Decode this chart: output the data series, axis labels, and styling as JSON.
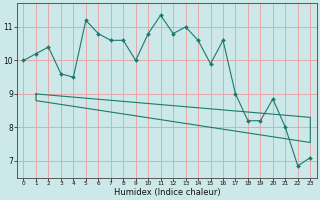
{
  "xlabel": "Humidex (Indice chaleur)",
  "background_color": "#cde8e8",
  "line_color": "#1a7a6e",
  "grid_color_v": "#e8a0a0",
  "grid_color_h": "#e8a0a0",
  "xlim": [
    -0.5,
    23.5
  ],
  "ylim": [
    6.5,
    11.7
  ],
  "yticks": [
    7,
    8,
    9,
    10,
    11
  ],
  "xticks": [
    0,
    1,
    2,
    3,
    4,
    5,
    6,
    7,
    8,
    9,
    10,
    11,
    12,
    13,
    14,
    15,
    16,
    17,
    18,
    19,
    20,
    21,
    22,
    23
  ],
  "main_x": [
    0,
    1,
    2,
    3,
    4,
    5,
    6,
    7,
    8,
    9,
    10,
    11,
    12,
    13,
    14,
    15,
    16,
    17,
    18,
    19,
    20,
    21,
    22,
    23
  ],
  "main_y": [
    10.0,
    10.2,
    10.4,
    9.6,
    9.5,
    11.2,
    10.8,
    10.6,
    10.6,
    10.0,
    10.8,
    11.35,
    10.8,
    11.0,
    10.6,
    9.9,
    10.6,
    9.0,
    8.2,
    8.2,
    8.85,
    8.0,
    6.85,
    7.1
  ],
  "envelope_x": [
    1,
    1,
    23,
    23,
    1
  ],
  "envelope_y": [
    9.0,
    8.8,
    7.55,
    8.3,
    9.0
  ]
}
